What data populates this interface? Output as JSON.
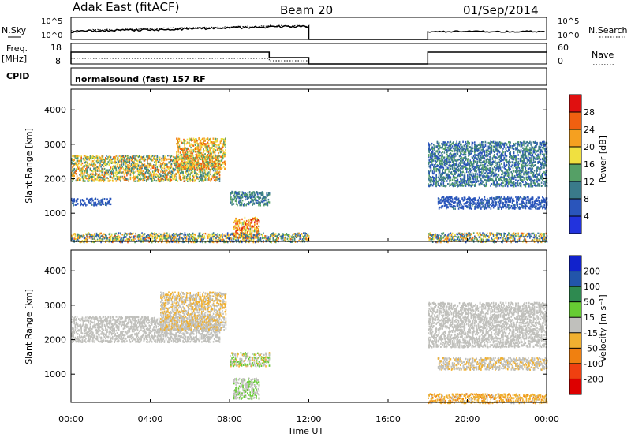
{
  "header": {
    "station": "Adak East (fitACF)",
    "beam": "Beam 20",
    "date": "01/Sep/2014"
  },
  "noise_panel": {
    "left_label": "N.Sky",
    "right_label": "N.Search",
    "left_ticks": [
      "10^5",
      "10^0"
    ],
    "right_ticks": [
      "10^5",
      "10^0"
    ]
  },
  "freq_panel": {
    "left_label_1": "Freq.",
    "left_label_2": "[MHz]",
    "right_label": "Nave",
    "left_ticks": [
      "18",
      "8"
    ],
    "right_ticks": [
      "60",
      "0"
    ]
  },
  "cpid": {
    "label": "CPID",
    "text": "normalsound (fast) 157 RF"
  },
  "x_axis": {
    "ticks": [
      "00:00",
      "04:00",
      "08:00",
      "12:00",
      "16:00",
      "20:00",
      "00:00"
    ],
    "title": "Time UT"
  },
  "colors": {
    "power": [
      "#2233dd",
      "#2a55bb",
      "#3a7a8a",
      "#55a066",
      "#f0e040",
      "#f5a020",
      "#f06010",
      "#e01010"
    ],
    "velocity": [
      "#1122cc",
      "#2255aa",
      "#2e8a50",
      "#66cc33",
      "#c0c0bc",
      "#f0b030",
      "#f08010",
      "#f04010",
      "#dd0000"
    ]
  },
  "chart_data": [
    {
      "type": "heatmap",
      "title": "",
      "quantity": "Power",
      "colorbar_label": "Power [dB]",
      "colorbar_ticks": [
        "28",
        "24",
        "20",
        "16",
        "12",
        "8",
        "4"
      ],
      "colorbar_range": [
        0,
        30
      ],
      "xlabel": "Time UT",
      "ylabel": "Slant Range [km]",
      "xlim_hours": [
        0,
        24
      ],
      "ylim_km": [
        180,
        4600
      ],
      "y_ticks": [
        "4000",
        "3000",
        "2000",
        "1000"
      ],
      "data_gap_hours": [
        12,
        18
      ],
      "echo_regions": [
        {
          "t": [
            0.0,
            7.5
          ],
          "range_km": [
            1950,
            2700
          ],
          "power_db": [
            8,
            24
          ]
        },
        {
          "t": [
            5.3,
            7.8
          ],
          "range_km": [
            2300,
            3200
          ],
          "power_db": [
            12,
            26
          ]
        },
        {
          "t": [
            8.0,
            10.0
          ],
          "range_km": [
            1250,
            1650
          ],
          "power_db": [
            6,
            14
          ]
        },
        {
          "t": [
            8.2,
            9.5
          ],
          "range_km": [
            300,
            900
          ],
          "power_db": [
            14,
            28
          ]
        },
        {
          "t": [
            0.0,
            2.0
          ],
          "range_km": [
            1250,
            1450
          ],
          "power_db": [
            4,
            8
          ]
        },
        {
          "t": [
            18.0,
            24.0
          ],
          "range_km": [
            1800,
            3100
          ],
          "power_db": [
            4,
            14
          ]
        },
        {
          "t": [
            18.5,
            24.0
          ],
          "range_km": [
            1150,
            1500
          ],
          "power_db": [
            4,
            8
          ]
        },
        {
          "t": [
            0.0,
            24.0
          ],
          "range_km": [
            180,
            450
          ],
          "power_db": [
            4,
            24
          ]
        }
      ]
    },
    {
      "type": "heatmap",
      "title": "",
      "quantity": "Velocity",
      "colorbar_label": "Velocity [m s⁻¹]",
      "colorbar_ticks": [
        "200",
        "100",
        "50",
        "15",
        "-15",
        "-50",
        "-100",
        "-200"
      ],
      "colorbar_range": [
        -250,
        250
      ],
      "xlabel": "Time UT",
      "ylabel": "Slant Range [km]",
      "xlim_hours": [
        0,
        24
      ],
      "ylim_km": [
        180,
        4600
      ],
      "y_ticks": [
        "4000",
        "3000",
        "2000",
        "1000"
      ],
      "data_gap_hours": [
        12,
        18
      ],
      "echo_regions": [
        {
          "t": [
            0.0,
            7.5
          ],
          "range_km": [
            1950,
            2700
          ],
          "velocity_ms": [
            -15,
            15
          ]
        },
        {
          "t": [
            4.5,
            7.8
          ],
          "range_km": [
            2300,
            3400
          ],
          "velocity_ms": [
            -60,
            15
          ]
        },
        {
          "t": [
            8.0,
            10.0
          ],
          "range_km": [
            1250,
            1650
          ],
          "velocity_ms": [
            -50,
            60
          ]
        },
        {
          "t": [
            8.2,
            9.5
          ],
          "range_km": [
            300,
            900
          ],
          "velocity_ms": [
            -15,
            50
          ]
        },
        {
          "t": [
            18.0,
            24.0
          ],
          "range_km": [
            1800,
            3100
          ],
          "velocity_ms": [
            -15,
            15
          ]
        },
        {
          "t": [
            18.5,
            24.0
          ],
          "range_km": [
            1150,
            1500
          ],
          "velocity_ms": [
            -50,
            15
          ]
        },
        {
          "t": [
            18.0,
            24.0
          ],
          "range_km": [
            180,
            450
          ],
          "velocity_ms": [
            -100,
            -15
          ]
        }
      ]
    }
  ]
}
